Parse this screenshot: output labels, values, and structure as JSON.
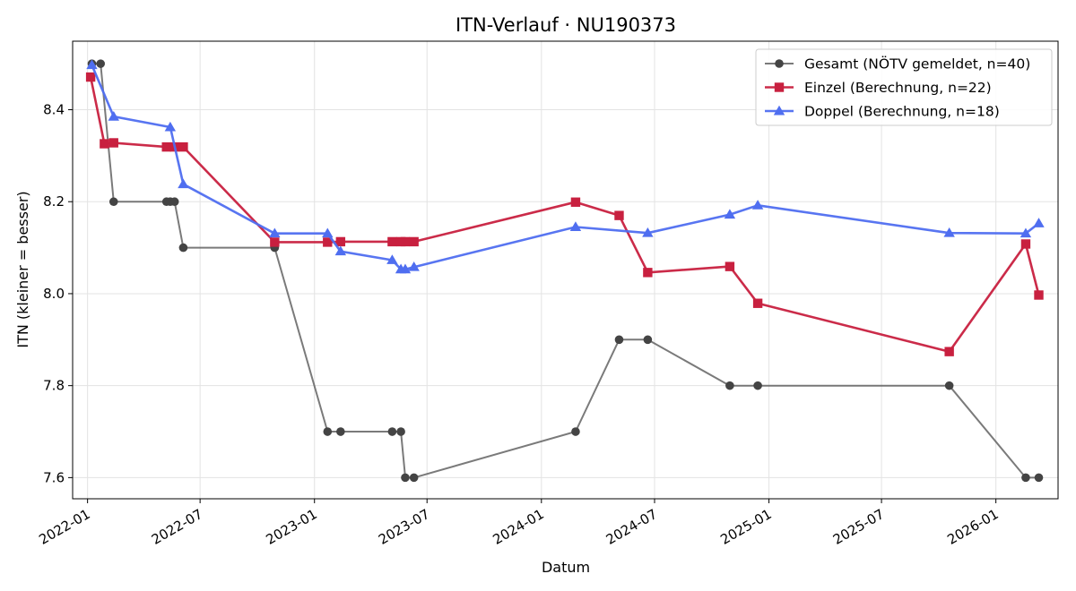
{
  "chart_data": {
    "type": "line",
    "title": "ITN-Verlauf · NU190373",
    "xlabel": "Datum",
    "ylabel": "ITN  (kleiner = besser)",
    "x_axis_type": "date",
    "xlim": [
      "2021-12-08",
      "2026-04-11"
    ],
    "ylim": [
      7.554,
      8.549
    ],
    "x_ticks": [
      "2022-01-01",
      "2022-07-01",
      "2023-01-01",
      "2023-07-01",
      "2024-01-01",
      "2024-07-01",
      "2025-01-01",
      "2025-07-01",
      "2026-01-01"
    ],
    "x_tick_labels": [
      "2022-01",
      "2022-07",
      "2023-01",
      "2023-07",
      "2024-01",
      "2024-07",
      "2025-01",
      "2025-07",
      "2026-01"
    ],
    "y_ticks": [
      7.6,
      7.8,
      8.0,
      8.2,
      8.4
    ],
    "y_tick_labels": [
      "7.6",
      "7.8",
      "8.0",
      "8.2",
      "8.4"
    ],
    "grid": true,
    "legend_position": "top-right",
    "series": [
      {
        "name": "Gesamt (NÖTV gemeldet, n=40)",
        "color": "#555555",
        "marker": "circle",
        "x": [
          "2022-01-08",
          "2022-01-22",
          "2022-02-12",
          "2022-05-08",
          "2022-05-14",
          "2022-05-21",
          "2022-06-04",
          "2022-10-29",
          "2023-01-22",
          "2023-02-12",
          "2023-05-06",
          "2023-05-20",
          "2023-05-27",
          "2023-06-10",
          "2024-02-25",
          "2024-05-05",
          "2024-06-20",
          "2024-10-30",
          "2024-12-14",
          "2025-10-18",
          "2026-02-18",
          "2026-03-11"
        ],
        "values": [
          8.5,
          8.5,
          8.2,
          8.2,
          8.2,
          8.2,
          8.1,
          8.1,
          7.7,
          7.7,
          7.7,
          7.7,
          7.6,
          7.6,
          7.7,
          7.9,
          7.9,
          7.8,
          7.8,
          7.8,
          7.6,
          7.6
        ]
      },
      {
        "name": "Einzel (Berechnung, n=22)",
        "color": "#c8203f",
        "marker": "square",
        "x": [
          "2022-01-06",
          "2022-01-28",
          "2022-02-12",
          "2022-05-08",
          "2022-05-21",
          "2022-06-04",
          "2022-10-29",
          "2023-01-22",
          "2023-02-12",
          "2023-05-06",
          "2023-05-20",
          "2023-05-27",
          "2023-06-10",
          "2024-02-25",
          "2024-05-05",
          "2024-06-20",
          "2024-10-30",
          "2024-12-14",
          "2025-10-18",
          "2026-02-18",
          "2026-03-11"
        ],
        "values": [
          8.471,
          8.326,
          8.328,
          8.319,
          8.319,
          8.319,
          8.112,
          8.112,
          8.113,
          8.113,
          8.113,
          8.113,
          8.113,
          8.199,
          8.17,
          8.046,
          8.059,
          7.979,
          7.874,
          8.108,
          7.997
        ]
      },
      {
        "name": "Doppel (Berechnung, n=18)",
        "color": "#4f6ef0",
        "marker": "triangle",
        "x": [
          "2022-01-08",
          "2022-02-12",
          "2022-05-14",
          "2022-06-04",
          "2022-10-29",
          "2023-01-22",
          "2023-02-12",
          "2023-05-06",
          "2023-05-20",
          "2023-05-27",
          "2023-06-10",
          "2024-02-25",
          "2024-06-20",
          "2024-10-30",
          "2024-12-14",
          "2025-10-18",
          "2026-02-18",
          "2026-03-11"
        ],
        "values": [
          8.497,
          8.385,
          8.362,
          8.238,
          8.131,
          8.131,
          8.092,
          8.073,
          8.053,
          8.053,
          8.058,
          8.145,
          8.132,
          8.172,
          8.192,
          8.132,
          8.131,
          8.153
        ]
      }
    ]
  }
}
